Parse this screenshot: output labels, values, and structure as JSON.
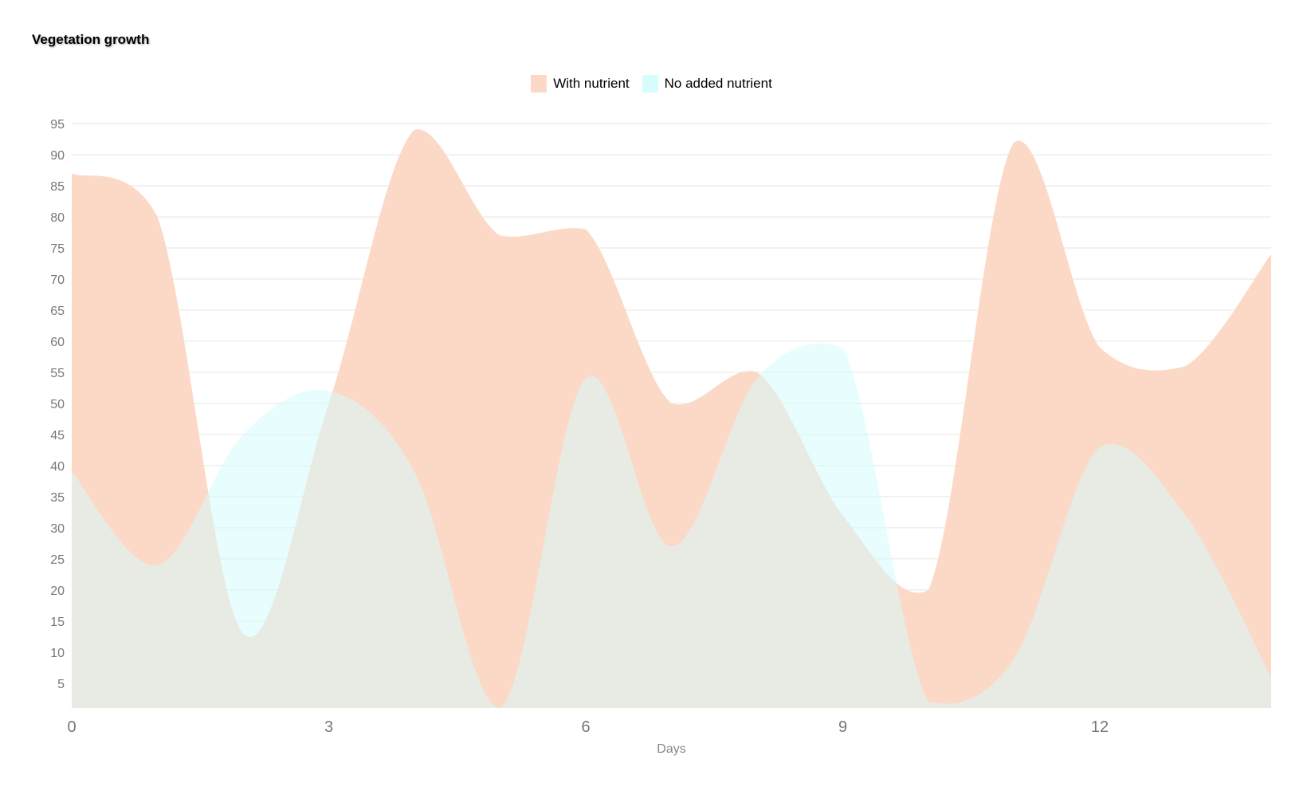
{
  "chart_data": {
    "type": "area",
    "title": "Vegetation growth",
    "xlabel": "Days",
    "ylabel": "",
    "x": [
      0,
      1,
      2,
      3,
      4,
      5,
      6,
      7,
      8,
      9,
      10,
      11,
      12,
      13,
      14
    ],
    "xticks": [
      0,
      3,
      6,
      9,
      12
    ],
    "yticks": [
      5,
      10,
      15,
      20,
      25,
      30,
      35,
      40,
      45,
      50,
      55,
      60,
      65,
      70,
      75,
      80,
      85,
      90,
      95
    ],
    "xlim": [
      0,
      14
    ],
    "ylim": [
      1,
      95
    ],
    "grid": true,
    "legend_position": "top-center",
    "series": [
      {
        "name": "With nutrient",
        "color": "#fcd8c7",
        "values": [
          87,
          80,
          13,
          50,
          94,
          77,
          78,
          50,
          55,
          32,
          20,
          92,
          59,
          56,
          74
        ]
      },
      {
        "name": "No added nutrient",
        "color": "#d6fcfc",
        "values": [
          39,
          24,
          45,
          52,
          39,
          1,
          54,
          27,
          54,
          59,
          2,
          9,
          43,
          32,
          6
        ]
      }
    ]
  }
}
